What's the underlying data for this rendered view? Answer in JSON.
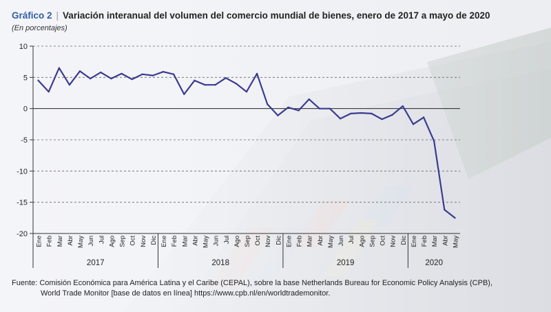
{
  "header": {
    "label": "Gráfico 2",
    "title": "Variación interanual del volumen del comercio mundial de bienes, enero de 2017 a mayo de 2020",
    "subtitle": "(En porcentajes)"
  },
  "chart_data": {
    "type": "line",
    "title": "Variación interanual del volumen del comercio mundial de bienes, enero de 2017 a mayo de 2020",
    "ylabel": "(En porcentajes)",
    "xlabel": "",
    "ylim": [
      -20,
      10
    ],
    "yticks": [
      "10",
      "5",
      "0",
      "-5",
      "-10",
      "-15",
      "-20"
    ],
    "ytick_values": [
      10,
      5,
      0,
      -5,
      -10,
      -15,
      -20
    ],
    "grid": "horizontal-dashed",
    "x": [
      "Ene",
      "Feb",
      "Mar",
      "Abr",
      "May",
      "Jun",
      "Jul",
      "Ago",
      "Sep",
      "Oct",
      "Nov",
      "Dic",
      "Ene",
      "Feb",
      "Mar",
      "Abr",
      "May",
      "Jun",
      "Jul",
      "Ago",
      "Sep",
      "Oct",
      "Nov",
      "Dic",
      "Ene",
      "Feb",
      "Mar",
      "Abr",
      "May",
      "Jun",
      "Jul",
      "Ago",
      "Sep",
      "Oct",
      "Nov",
      "Dic",
      "Ene",
      "Feb",
      "Mar",
      "Abr",
      "May"
    ],
    "years": [
      {
        "label": "2017",
        "months": 12
      },
      {
        "label": "2018",
        "months": 12
      },
      {
        "label": "2019",
        "months": 12
      },
      {
        "label": "2020",
        "months": 5
      }
    ],
    "series": [
      {
        "name": "Variación interanual",
        "color": "#3b3b8f",
        "values": [
          4.5,
          2.7,
          6.5,
          3.8,
          6.0,
          4.8,
          5.8,
          4.8,
          5.6,
          4.7,
          5.5,
          5.3,
          5.9,
          5.5,
          2.3,
          4.5,
          3.8,
          3.8,
          4.9,
          4.0,
          2.7,
          5.6,
          0.7,
          -1.1,
          0.2,
          -0.3,
          1.5,
          0.0,
          0.0,
          -1.6,
          -0.8,
          -0.7,
          -0.8,
          -1.7,
          -1.0,
          0.4,
          -2.5,
          -1.4,
          -5.2,
          -16.2,
          -17.5
        ]
      }
    ]
  },
  "footer": {
    "line1": "Fuente: Comisión Económica para América Latina y el Caribe (CEPAL), sobre la base Netherlands Bureau for Economic Policy Analysis (CPB),",
    "line2": "World Trade Monitor [base de datos en línea] https://www.cpb.nl/en/worldtrademonitor."
  }
}
